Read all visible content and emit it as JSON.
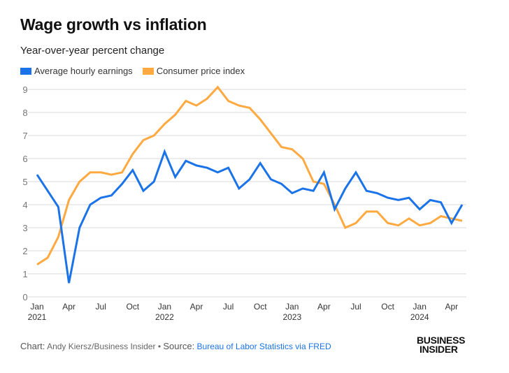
{
  "header": {
    "title": "Wage growth vs inflation",
    "subtitle": "Year-over-year percent change"
  },
  "footer": {
    "chart_label": "Chart:",
    "author": "Andy Kiersz/Business Insider",
    "bullet": "•",
    "source_label": "Source:",
    "source_link": "Bureau of Labor Statistics via FRED",
    "logo_line1": "BUSINESS",
    "logo_line2": "INSIDER"
  },
  "colors": {
    "wage": "#1a73e8",
    "cpi": "#ffa940",
    "grid": "#d9d9d9",
    "tick": "#666666"
  },
  "chart_data": {
    "type": "line",
    "title": "Wage growth vs inflation",
    "subtitle": "Year-over-year percent change",
    "xlabel": "",
    "ylabel": "",
    "ylim": [
      0,
      9
    ],
    "yticks": [
      0,
      1,
      2,
      3,
      4,
      5,
      6,
      7,
      8,
      9
    ],
    "grid": true,
    "legend_position": "top-left",
    "x_start": "Jan 2021",
    "x_end": "May 2024",
    "xtick_labels": [
      {
        "index": 0,
        "label": "Jan",
        "year": "2021"
      },
      {
        "index": 3,
        "label": "Apr",
        "year": ""
      },
      {
        "index": 6,
        "label": "Jul",
        "year": ""
      },
      {
        "index": 9,
        "label": "Oct",
        "year": ""
      },
      {
        "index": 12,
        "label": "Jan",
        "year": "2022"
      },
      {
        "index": 15,
        "label": "Apr",
        "year": ""
      },
      {
        "index": 18,
        "label": "Jul",
        "year": ""
      },
      {
        "index": 21,
        "label": "Oct",
        "year": ""
      },
      {
        "index": 24,
        "label": "Jan",
        "year": "2023"
      },
      {
        "index": 27,
        "label": "Apr",
        "year": ""
      },
      {
        "index": 30,
        "label": "Jul",
        "year": ""
      },
      {
        "index": 33,
        "label": "Oct",
        "year": ""
      },
      {
        "index": 36,
        "label": "Jan",
        "year": "2024"
      },
      {
        "index": 39,
        "label": "Apr",
        "year": ""
      }
    ],
    "series": [
      {
        "name": "Average hourly earnings",
        "color": "#1a73e8",
        "values": [
          5.3,
          4.6,
          3.9,
          0.6,
          3.0,
          4.0,
          4.3,
          4.4,
          4.9,
          5.5,
          4.6,
          5.0,
          6.3,
          5.2,
          5.9,
          5.7,
          5.6,
          5.4,
          5.6,
          4.7,
          5.1,
          5.8,
          5.1,
          4.9,
          4.5,
          4.7,
          4.6,
          5.4,
          3.8,
          4.7,
          5.4,
          4.6,
          4.5,
          4.3,
          4.2,
          4.3,
          3.8,
          4.2,
          4.1,
          3.2,
          4.0
        ]
      },
      {
        "name": "Consumer price index",
        "color": "#ffa940",
        "values": [
          1.4,
          1.7,
          2.6,
          4.2,
          5.0,
          5.4,
          5.4,
          5.3,
          5.4,
          6.2,
          6.8,
          7.0,
          7.5,
          7.9,
          8.5,
          8.3,
          8.6,
          9.1,
          8.5,
          8.3,
          8.2,
          7.7,
          7.1,
          6.5,
          6.4,
          6.0,
          5.0,
          4.9,
          4.0,
          3.0,
          3.2,
          3.7,
          3.7,
          3.2,
          3.1,
          3.4,
          3.1,
          3.2,
          3.5,
          3.4,
          3.3
        ]
      }
    ]
  }
}
